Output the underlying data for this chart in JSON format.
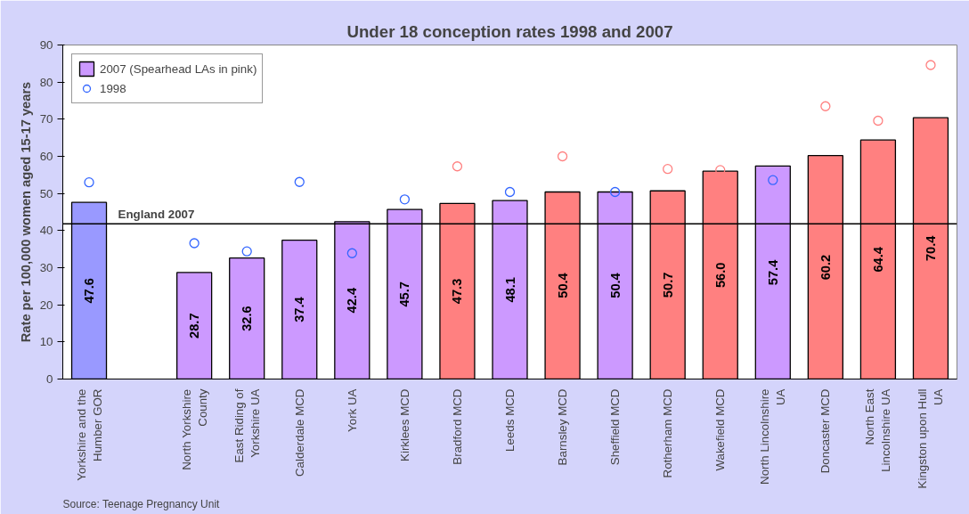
{
  "chart_data": {
    "type": "bar",
    "title": "Under 18 conception rates 1998 and 2007",
    "ylabel": "Rate per 100,000 women aged 15-17 years",
    "categories": [
      "Yorkshire and the Humber GOR",
      null,
      "North Yorkshire County",
      "East Riding of Yorkshire UA",
      "Calderdale MCD",
      "York UA",
      "Kirklees MCD",
      "Bradford MCD",
      "Leeds MCD",
      "Barnsley MCD",
      "Sheffield MCD",
      "Rotherham MCD",
      "Wakefield MCD",
      "North Lincolnshire UA",
      "Doncaster MCD",
      "North East Lincolnshire UA",
      "Kingston upon Hull UA"
    ],
    "series": [
      {
        "name": "2007 (Spearhead LAs in pink)",
        "color": "#cc99ff",
        "value_labels": [
          "47.6",
          null,
          "28.7",
          "32.6",
          "37.4",
          "42.4",
          "45.7",
          "47.3",
          "48.1",
          "50.4",
          "50.4",
          "50.7",
          "56.0",
          "57.4",
          "60.2",
          "64.4",
          "70.4"
        ],
        "values": [
          47.6,
          null,
          28.7,
          32.6,
          37.4,
          42.4,
          45.7,
          47.3,
          48.1,
          50.4,
          50.4,
          50.7,
          56.0,
          57.4,
          60.2,
          64.4,
          70.4
        ],
        "colors": [
          "#9999ff",
          "#cc99ff",
          "#cc99ff",
          "#cc99ff",
          "#cc99ff",
          "#cc99ff",
          "#cc99ff",
          "#ff8080",
          "#cc99ff",
          "#ff8080",
          "#cc99ff",
          "#ff8080",
          "#ff8080",
          "#cc99ff",
          "#ff8080",
          "#ff8080",
          "#ff8080"
        ]
      },
      {
        "name": "1998",
        "type": "scatter",
        "marker": "circle",
        "color": "#3366ff",
        "values": [
          53.0,
          null,
          36.6,
          34.4,
          53.1,
          33.9,
          48.4,
          57.3,
          50.4,
          60.0,
          50.4,
          56.6,
          56.3,
          53.6,
          73.5,
          69.6,
          84.6
        ],
        "colors": [
          "#3366ff",
          "#3366ff",
          "#3366ff",
          "#3366ff",
          "#3366ff",
          "#3366ff",
          "#3366ff",
          "#ff8080",
          "#3366ff",
          "#ff8080",
          "#3366ff",
          "#ff8080",
          "#ff8080",
          "#3366ff",
          "#ff8080",
          "#ff8080",
          "#ff8080"
        ]
      }
    ],
    "ylim": [
      0,
      90
    ],
    "yticks": [
      0,
      10,
      20,
      30,
      40,
      50,
      60,
      70,
      80,
      90
    ],
    "ref_lines": [
      {
        "axis": "y",
        "value": 41.8,
        "label": "England 2007",
        "color": "#000000"
      }
    ],
    "grid": false,
    "legend": "top left",
    "annotations": [
      "Source: Teenage Pregnancy Unit"
    ]
  }
}
